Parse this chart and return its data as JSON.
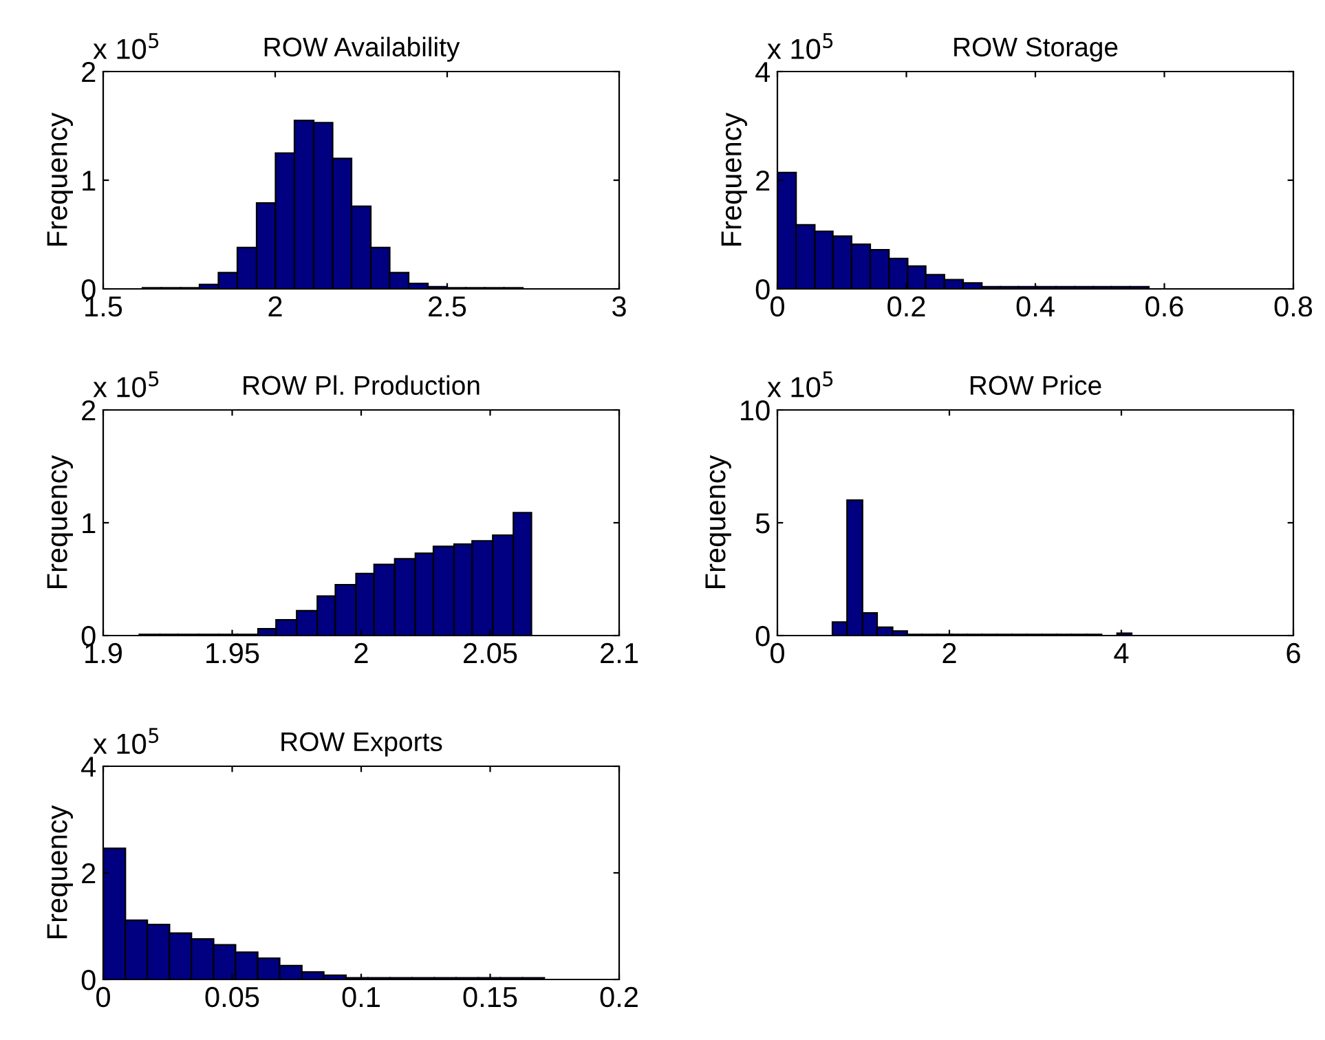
{
  "chart_data": [
    {
      "type": "histogram",
      "title": "ROW Availability",
      "ylabel": "Frequency",
      "annotations": [
        "x 10$^{5}$"
      ],
      "color": "#000080",
      "bins": [
        1.614,
        1.669,
        1.725,
        1.78,
        1.835,
        1.89,
        1.946,
        2.001,
        2.056,
        2.112,
        2.167,
        2.222,
        2.278,
        2.333,
        2.388,
        2.444,
        2.499,
        2.554,
        2.609,
        2.665,
        2.72
      ],
      "values": [
        0.01,
        0.01,
        0.01,
        0.04,
        0.15,
        0.38,
        0.79,
        1.25,
        1.55,
        1.53,
        1.2,
        0.76,
        0.38,
        0.15,
        0.05,
        0.02,
        0.01,
        0.01,
        0.01,
        0.01
      ],
      "xlim": [
        1.5,
        3
      ],
      "xticks": [
        1.5,
        2,
        2.5,
        3
      ],
      "ylim": [
        0,
        2
      ],
      "yticks": [
        0,
        1,
        2
      ],
      "grid": false
    },
    {
      "type": "histogram",
      "title": "ROW Storage",
      "ylabel": "Frequency",
      "annotations": [
        "x 10$^{5}$"
      ],
      "color": "#000080",
      "bins": [
        0,
        0.029,
        0.058,
        0.086,
        0.115,
        0.144,
        0.173,
        0.202,
        0.23,
        0.259,
        0.288,
        0.317,
        0.346,
        0.374,
        0.403,
        0.432,
        0.461,
        0.49,
        0.518,
        0.547,
        0.576
      ],
      "values": [
        2.14,
        1.18,
        1.06,
        0.97,
        0.82,
        0.72,
        0.56,
        0.42,
        0.26,
        0.17,
        0.11,
        0.04,
        0.04,
        0.04,
        0.04,
        0.04,
        0.04,
        0.04,
        0.04,
        0.04
      ],
      "xlim": [
        0,
        0.8
      ],
      "xticks": [
        0,
        0.2,
        0.4,
        0.6,
        0.8
      ],
      "ylim": [
        0,
        4
      ],
      "yticks": [
        0,
        2,
        4
      ],
      "grid": false
    },
    {
      "type": "histogram",
      "title": "ROW Pl. Production",
      "ylabel": "Frequency",
      "annotations": [
        "x 10$^{5}$"
      ],
      "color": "#000080",
      "bins": [
        1.914,
        1.922,
        1.929,
        1.937,
        1.945,
        1.952,
        1.96,
        1.967,
        1.975,
        1.983,
        1.99,
        1.998,
        2.005,
        2.013,
        2.021,
        2.028,
        2.036,
        2.043,
        2.051,
        2.059,
        2.066
      ],
      "values": [
        0.01,
        0.01,
        0.01,
        0.01,
        0.01,
        0.01,
        0.06,
        0.14,
        0.22,
        0.35,
        0.45,
        0.55,
        0.63,
        0.68,
        0.73,
        0.79,
        0.81,
        0.84,
        0.89,
        1.09
      ],
      "xlim": [
        1.9,
        2.1
      ],
      "xticks": [
        1.9,
        1.95,
        2,
        2.05,
        2.1
      ],
      "ylim": [
        0,
        2
      ],
      "yticks": [
        0,
        1,
        2
      ],
      "grid": false
    },
    {
      "type": "histogram",
      "title": "ROW Price",
      "ylabel": "Frequency",
      "annotations": [
        "x 10$^{5}$"
      ],
      "color": "#000080",
      "bins": [
        0.64,
        0.81,
        0.99,
        1.16,
        1.34,
        1.51,
        1.68,
        1.86,
        2.03,
        2.21,
        2.38,
        2.55,
        2.73,
        2.9,
        3.08,
        3.25,
        3.42,
        3.6,
        3.77,
        3.95,
        4.12
      ],
      "values": [
        0.6,
        6.0,
        1.0,
        0.37,
        0.2,
        0.05,
        0.05,
        0.05,
        0.05,
        0.05,
        0.05,
        0.05,
        0.05,
        0.05,
        0.05,
        0.05,
        0.05,
        0.05,
        0,
        0.1
      ],
      "xlim": [
        0,
        6
      ],
      "xticks": [
        0,
        2,
        4,
        6
      ],
      "ylim": [
        0,
        10
      ],
      "yticks": [
        0,
        5,
        10
      ],
      "grid": false
    },
    {
      "type": "histogram",
      "title": "ROW Exports",
      "ylabel": "Frequency",
      "annotations": [
        "x 10$^{5}$"
      ],
      "color": "#000080",
      "bins": [
        0,
        0.0086,
        0.0171,
        0.0257,
        0.0342,
        0.0428,
        0.0513,
        0.0599,
        0.0684,
        0.077,
        0.0855,
        0.0941,
        0.1026,
        0.1112,
        0.1197,
        0.1283,
        0.1368,
        0.1454,
        0.1539,
        0.1625,
        0.171
      ],
      "values": [
        2.46,
        1.11,
        1.03,
        0.87,
        0.76,
        0.65,
        0.51,
        0.4,
        0.26,
        0.14,
        0.08,
        0.03,
        0.03,
        0.03,
        0.03,
        0.03,
        0.03,
        0.03,
        0.03,
        0.03
      ],
      "xlim": [
        0,
        0.2
      ],
      "xticks": [
        0,
        0.05,
        0.1,
        0.15,
        0.2
      ],
      "ylim": [
        0,
        4
      ],
      "yticks": [
        0,
        2,
        4
      ],
      "grid": false
    }
  ]
}
